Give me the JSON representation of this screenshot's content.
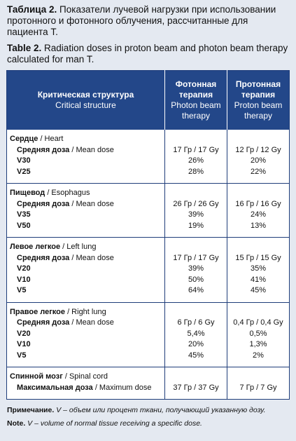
{
  "caption_ru": {
    "label": "Таблица 2.",
    "text": "Показатели лучевой нагрузки при использовании протонного и фотонного облучения, рассчитанные для пациента Т."
  },
  "caption_en": {
    "label": "Table 2.",
    "text": "Radiation doses in proton beam and photon beam therapy calculated for man T."
  },
  "table": {
    "header": [
      {
        "ru": "Критическая структура",
        "en": "Critical structure"
      },
      {
        "ru": "Фотонная терапия",
        "en": "Photon beam therapy"
      },
      {
        "ru": "Протонная терапия",
        "en": "Proton beam therapy"
      }
    ],
    "groups": [
      {
        "title": {
          "bold": "Сердце",
          "rest": "/ Heart"
        },
        "rows": [
          {
            "label": {
              "bold": "Средняя доза",
              "rest": "/ Mean dose"
            },
            "photon": "17 Гр / 17 Gy",
            "proton": "12 Гр / 12 Gy"
          },
          {
            "label": {
              "bold": "V30"
            },
            "photon": "26%",
            "proton": "20%"
          },
          {
            "label": {
              "bold": "V25"
            },
            "photon": "28%",
            "proton": "22%"
          }
        ]
      },
      {
        "title": {
          "bold": "Пищевод",
          "rest": "/ Esophagus"
        },
        "rows": [
          {
            "label": {
              "bold": "Средняя доза",
              "rest": "/ Mean dose"
            },
            "photon": "26 Гр / 26 Gy",
            "proton": "16 Гр / 16 Gy"
          },
          {
            "label": {
              "bold": "V35"
            },
            "photon": "39%",
            "proton": "24%"
          },
          {
            "label": {
              "bold": "V50"
            },
            "photon": "19%",
            "proton": "13%"
          }
        ]
      },
      {
        "title": {
          "bold": "Левое легкое",
          "rest": "/ Left lung"
        },
        "rows": [
          {
            "label": {
              "bold": "Средняя доза",
              "rest": "/ Mean dose"
            },
            "photon": "17 Гр / 17 Gy",
            "proton": "15 Гр / 15 Gy"
          },
          {
            "label": {
              "bold": "V20"
            },
            "photon": "39%",
            "proton": "35%"
          },
          {
            "label": {
              "bold": "V10"
            },
            "photon": "50%",
            "proton": "41%"
          },
          {
            "label": {
              "bold": "V5"
            },
            "photon": "64%",
            "proton": "45%"
          }
        ]
      },
      {
        "title": {
          "bold": "Правое легкое",
          "rest": "/ Right lung"
        },
        "rows": [
          {
            "label": {
              "bold": "Средняя доза",
              "rest": "/ Mean dose"
            },
            "photon": "6 Гр / 6 Gy",
            "proton": "0,4 Гр / 0,4 Gy"
          },
          {
            "label": {
              "bold": "V20"
            },
            "photon": "5,4%",
            "proton": "0,5%"
          },
          {
            "label": {
              "bold": "V10"
            },
            "photon": "20%",
            "proton": "1,3%"
          },
          {
            "label": {
              "bold": "V5"
            },
            "photon": "45%",
            "proton": "2%"
          }
        ]
      },
      {
        "title": {
          "bold": "Спинной мозг",
          "rest": "/ Spinal cord"
        },
        "rows": [
          {
            "label": {
              "bold": "Максимальная доза",
              "rest": "/ Maximum dose"
            },
            "photon": "37 Гр / 37 Gy",
            "proton": "7 Гр / 7 Gy"
          }
        ]
      }
    ]
  },
  "note_ru": {
    "label": "Примечание.",
    "text": "V – объем или процент ткани, получающий указанную дозу."
  },
  "note_en": {
    "label": "Note.",
    "text": "V – volume of normal tissue receiving a specific dose."
  }
}
